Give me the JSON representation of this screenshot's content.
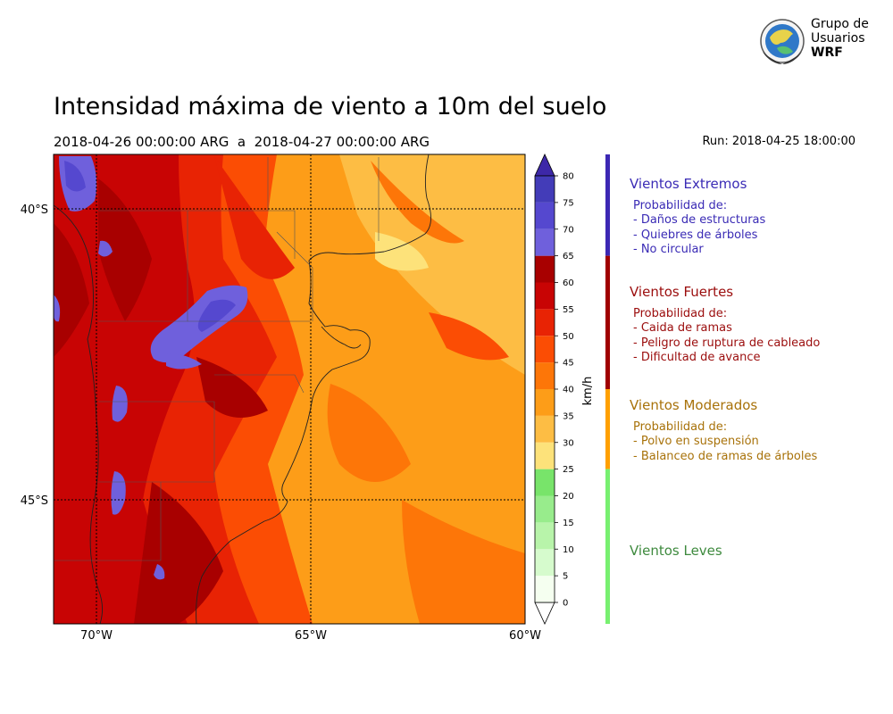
{
  "header": {
    "title": "Intensidad máxima de viento a 10m del suelo",
    "period": "2018-04-26 00:00:00 ARG  a  2018-04-27 00:00:00 ARG",
    "run": "Run: 2018-04-25 18:00:00"
  },
  "logo": {
    "line1": "Grupo de",
    "line2": "Usuarios",
    "line3": "WRF",
    "icon": "globe-emblem-icon"
  },
  "map": {
    "lat_labels": [
      "40°S",
      "45°S"
    ],
    "lon_labels": [
      "70°W",
      "65°W",
      "60°W"
    ],
    "lon_range": [
      -71,
      -60
    ],
    "lat_range": [
      -47.9,
      -38.7
    ]
  },
  "colorbar": {
    "unit_label": "km/h",
    "ticks": [
      "0",
      "5",
      "10",
      "15",
      "20",
      "25",
      "30",
      "35",
      "40",
      "45",
      "50",
      "55",
      "60",
      "65",
      "70",
      "75",
      "80"
    ],
    "colors": [
      "#f5fff0",
      "#d6fbcd",
      "#b8f4aa",
      "#98ec8c",
      "#78e46a",
      "#fde27a",
      "#fdbd44",
      "#fd9d18",
      "#fd7608",
      "#fb4d04",
      "#e82304",
      "#c80404",
      "#a80000",
      "#6f60dc",
      "#5548cf",
      "#433cb8"
    ],
    "under_color": "#ffffff",
    "over_color": "#3d28a8"
  },
  "categories": [
    {
      "title": "Vientos Extremos",
      "color": "#3a2bb5",
      "bar_color": "#3c28b4",
      "range": [
        65,
        80
      ],
      "prob_label": "Probabilidad de:",
      "items": [
        "- Daños de estructuras",
        "- Quiebres de árboles",
        "- No circular"
      ]
    },
    {
      "title": "Vientos Fuertes",
      "color": "#9b0d0d",
      "bar_color": "#a00000",
      "range": [
        40,
        65
      ],
      "prob_label": "Probabilidad de:",
      "items": [
        "- Caida de ramas",
        "- Peligro de ruptura de cableado",
        "- Dificultad de avance"
      ]
    },
    {
      "title": "Vientos Moderados",
      "color": "#a8720a",
      "bar_color": "#ffa000",
      "range": [
        25,
        40
      ],
      "prob_label": "Probabilidad de:",
      "items": [
        "- Polvo en suspensión",
        "- Balanceo de ramas de árboles"
      ]
    },
    {
      "title": "Vientos Leves",
      "color": "#3e8a3e",
      "bar_color": "#78f070",
      "range": [
        0,
        25
      ],
      "prob_label": "",
      "items": []
    }
  ]
}
